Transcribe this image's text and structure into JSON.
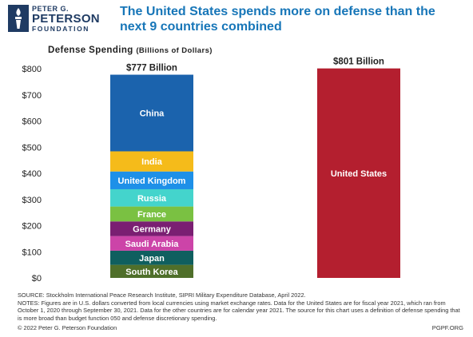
{
  "logo": {
    "line1": "PETER G.",
    "line2": "PETERSON",
    "line3": "FOUNDATION",
    "icon": "torch-icon",
    "color": "#1f3b63"
  },
  "headline": "The United States spends more on defense than the next 9 countries combined",
  "chart_data": {
    "type": "bar",
    "stacked": true,
    "ylabel_main": "Defense Spending",
    "ylabel_paren": "(Billions of Dollars)",
    "yticks": [
      "$0",
      "$100",
      "$200",
      "$300",
      "$400",
      "$500",
      "$600",
      "$700",
      "$800"
    ],
    "ylim": [
      0,
      800
    ],
    "grid": false,
    "bars": [
      {
        "total_label": "$777 Billion",
        "segments": [
          {
            "name": "South Korea",
            "value": 50,
            "color": "#4f6f2a"
          },
          {
            "name": "Japan",
            "value": 54,
            "color": "#0f5f5f"
          },
          {
            "name": "Saudi Arabia",
            "value": 56,
            "color": "#cc44a8"
          },
          {
            "name": "Germany",
            "value": 56,
            "color": "#7a1f72"
          },
          {
            "name": "France",
            "value": 57,
            "color": "#7ac142"
          },
          {
            "name": "Russia",
            "value": 66,
            "color": "#44d4cc"
          },
          {
            "name": "United Kingdom",
            "value": 68,
            "color": "#1e90e8"
          },
          {
            "name": "India",
            "value": 77,
            "color": "#f5bb1a"
          },
          {
            "name": "China",
            "value": 293,
            "color": "#1b63ad"
          }
        ]
      },
      {
        "total_label": "$801 Billion",
        "segments": [
          {
            "name": "United States",
            "value": 801,
            "color": "#b41f2f"
          }
        ]
      }
    ]
  },
  "source_line": "SOURCE: Stockholm International Peace Research Institute, SIPRI Military Expenditure Database, April 2022.",
  "notes": "NOTES: Figures are in U.S. dollars converted from local currencies using market exchange rates. Data for the United States are for fiscal year 2021, which ran from October 1, 2020 through September 30, 2021. Data for the other countries are for calendar year 2021. The source for this chart uses a definition of defense spending that is more broad than budget function 050 and defense discretionary spending.",
  "copyright": "© 2022 Peter G. Peterson Foundation",
  "site": "PGPF.ORG"
}
